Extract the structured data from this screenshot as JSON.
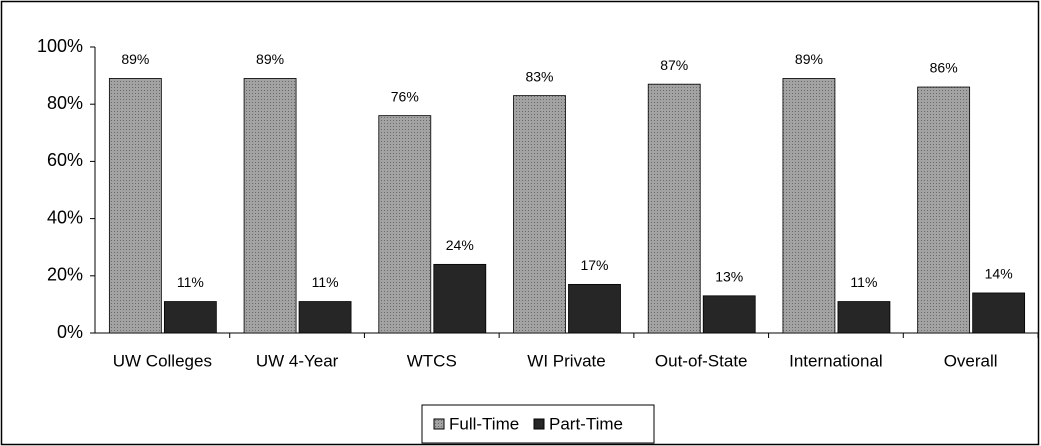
{
  "chart_data": {
    "type": "bar",
    "categories": [
      "UW Colleges",
      "UW 4-Year",
      "WTCS",
      "WI Private",
      "Out-of-State",
      "International",
      "Overall"
    ],
    "series": [
      {
        "name": "Full-Time",
        "color": "#a3a3a3",
        "values": [
          89,
          89,
          76,
          83,
          87,
          89,
          86
        ],
        "value_labels": [
          "89%",
          "89%",
          "76%",
          "83%",
          "87%",
          "89%",
          "86%"
        ]
      },
      {
        "name": "Part-Time",
        "color": "#262626",
        "values": [
          11,
          11,
          24,
          17,
          13,
          11,
          14
        ],
        "value_labels": [
          "11%",
          "11%",
          "24%",
          "17%",
          "13%",
          "11%",
          "14%"
        ]
      }
    ],
    "ylim": [
      0,
      100
    ],
    "yticks": [
      {
        "value": 0,
        "label": "0%"
      },
      {
        "value": 20,
        "label": "20%"
      },
      {
        "value": 40,
        "label": "40%"
      },
      {
        "value": 60,
        "label": "60%"
      },
      {
        "value": 80,
        "label": "80%"
      },
      {
        "value": 100,
        "label": "100%"
      }
    ],
    "grid": false,
    "legend": "bottom"
  }
}
